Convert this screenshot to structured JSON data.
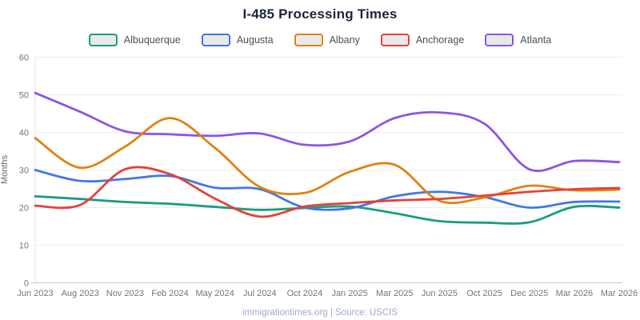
{
  "chart_data": {
    "type": "line",
    "title": "I-485 Processing Times",
    "xlabel": "",
    "ylabel": "Months",
    "ylim": [
      0,
      60
    ],
    "yticks": [
      0,
      10,
      20,
      30,
      40,
      50,
      60
    ],
    "grid": "horizontal",
    "legend_position": "top",
    "categories": [
      "Jun 2023",
      "Aug 2023",
      "Nov 2023",
      "Feb 2024",
      "May 2024",
      "Jul 2024",
      "Oct 2024",
      "Jan 2025",
      "Mar 2025",
      "Jun 2025",
      "Oct 2025",
      "Dec 2025",
      "Mar 2026",
      "Mar 2026"
    ],
    "series": [
      {
        "name": "Albuquerque",
        "color": "#199d7f",
        "values": [
          23,
          22.3,
          21.5,
          21,
          20.2,
          19.4,
          19.9,
          20.3,
          18.5,
          16.4,
          16,
          16.1,
          20.2,
          20
        ]
      },
      {
        "name": "Augusta",
        "color": "#4078e6",
        "values": [
          30,
          27.1,
          27.6,
          28.4,
          25.3,
          24.9,
          20,
          19.8,
          23,
          24.2,
          22.8,
          20,
          21.5,
          21.6
        ]
      },
      {
        "name": "Albany",
        "color": "#e0820f",
        "values": [
          38.5,
          30.6,
          36.2,
          43.8,
          35.9,
          25.5,
          23.9,
          29.5,
          31.4,
          21.8,
          22.7,
          25.8,
          24.6,
          24.8
        ]
      },
      {
        "name": "Anchorage",
        "color": "#e6403a",
        "values": [
          20.5,
          20.7,
          30.2,
          28.9,
          22.4,
          17.6,
          20.3,
          21.2,
          21.9,
          22.3,
          23.2,
          24.2,
          24.9,
          25.2
        ]
      },
      {
        "name": "Atlanta",
        "color": "#8c55e8",
        "values": [
          50.5,
          45.5,
          40.3,
          39.5,
          39.1,
          39.7,
          36.7,
          37.6,
          43.8,
          45.3,
          42.3,
          30.2,
          32.4,
          32.1
        ]
      }
    ],
    "draw_order": [
      "Atlanta",
      "Albuquerque",
      "Augusta",
      "Albany",
      "Anchorage"
    ]
  },
  "style": {
    "grid_color": "#ececec",
    "axis_line_color": "#c9c9c9",
    "y_axis_line_color": "#e0e0e0",
    "tick_label_color": "#757575",
    "title_color": "#1c2537",
    "legend_text_color": "#4f4f4f",
    "footer_color": "#9dabc7",
    "swatch_fill": "#e9e9e9"
  },
  "footer": {
    "text": "immigrationtimes.org | Source: USCIS"
  }
}
